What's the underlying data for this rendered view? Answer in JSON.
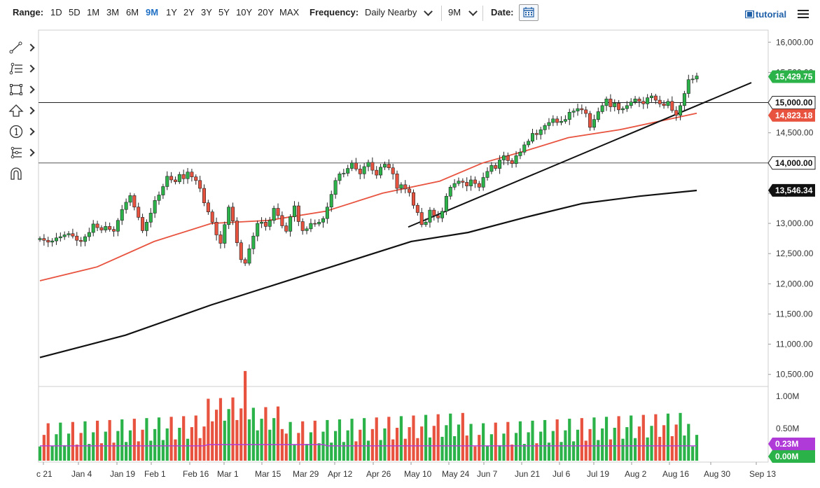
{
  "toolbar": {
    "range_label": "Range:",
    "ranges": [
      "1D",
      "5D",
      "1M",
      "3M",
      "6M",
      "9M",
      "1Y",
      "2Y",
      "3Y",
      "5Y",
      "10Y",
      "20Y",
      "MAX"
    ],
    "active_range": "9M",
    "frequency_label": "Frequency:",
    "frequency_value": "Daily Nearby",
    "period_value": "9M",
    "date_label": "Date:",
    "tutorial_label": "tutorial",
    "icons": [
      "calendar-icon",
      "film-icon",
      "hamburger-menu-icon"
    ]
  },
  "tools": [
    "line-draw-icon",
    "fib-levels-icon",
    "rectangle-icon",
    "arrow-up-icon",
    "annotation-number-icon",
    "pitchfork-icon",
    "magnet-icon"
  ],
  "chart_data": {
    "type": "candlestick",
    "x_labels": [
      "c 21",
      "Jan 4",
      "Jan 19",
      "Feb 1",
      "Feb 16",
      "Mar 1",
      "Mar 15",
      "Mar 29",
      "Apr 12",
      "Apr 26",
      "May 10",
      "May 24",
      "Jun 7",
      "Jun 21",
      "Jul 6",
      "Jul 19",
      "Aug 2",
      "Aug 16",
      "Aug 30",
      "Sep 13"
    ],
    "y_ticks": [
      "16,000.00",
      "15,500.00",
      "15,000.00",
      "14,500.00",
      "14,000.00",
      "13,500.00",
      "13,000.00",
      "12,500.00",
      "12,000.00",
      "11,500.00",
      "11,000.00",
      "10,500.00"
    ],
    "ylim": [
      10300,
      16200
    ],
    "horizontal_lines": [
      15000,
      14000
    ],
    "series_closes": [
      12750,
      12720,
      12690,
      12710,
      12760,
      12780,
      12810,
      12830,
      12790,
      12720,
      12700,
      12780,
      12850,
      12990,
      12930,
      12890,
      12950,
      12900,
      12870,
      13050,
      13230,
      13350,
      13460,
      13270,
      13100,
      12880,
      13020,
      13170,
      13380,
      13470,
      13610,
      13780,
      13720,
      13690,
      13810,
      13740,
      13850,
      13770,
      13710,
      13580,
      13340,
      13190,
      13020,
      12810,
      12670,
      12980,
      13270,
      13040,
      12680,
      12400,
      12340,
      12580,
      12790,
      13000,
      13020,
      12950,
      13050,
      13250,
      13130,
      12960,
      12870,
      13110,
      13290,
      13030,
      12880,
      12910,
      13000,
      12990,
      13020,
      13080,
      13270,
      13480,
      13710,
      13820,
      13830,
      13910,
      14000,
      13900,
      13820,
      13940,
      14010,
      13880,
      13800,
      13930,
      13980,
      13920,
      13820,
      13580,
      13640,
      13570,
      13510,
      13300,
      13180,
      12980,
      13020,
      13220,
      13130,
      13090,
      13200,
      13450,
      13600,
      13660,
      13700,
      13680,
      13620,
      13720,
      13660,
      13600,
      13760,
      13860,
      13960,
      13910,
      14050,
      14120,
      14040,
      13990,
      14120,
      14180,
      14300,
      14360,
      14490,
      14470,
      14550,
      14620,
      14670,
      14730,
      14670,
      14690,
      14720,
      14840,
      14860,
      14900,
      14880,
      14820,
      14590,
      14720,
      14850,
      14950,
      15060,
      14930,
      14990,
      14880,
      14900,
      14950,
      15010,
      15060,
      15020,
      14980,
      15080,
      15110,
      15040,
      14980,
      14950,
      15020,
      14870,
      14790,
      14950,
      15150,
      15380,
      15390,
      15440
    ],
    "ma50": [
      [
        0,
        12050
      ],
      [
        20,
        12280
      ],
      [
        40,
        12700
      ],
      [
        60,
        13000
      ],
      [
        80,
        13050
      ],
      [
        100,
        13200
      ],
      [
        120,
        13500
      ],
      [
        140,
        13700
      ],
      [
        155,
        14000
      ],
      [
        170,
        14200
      ],
      [
        185,
        14420
      ],
      [
        203,
        14550
      ],
      [
        230,
        14823
      ]
    ],
    "ma200": [
      [
        0,
        10780
      ],
      [
        30,
        11150
      ],
      [
        60,
        11650
      ],
      [
        90,
        12100
      ],
      [
        110,
        12400
      ],
      [
        130,
        12700
      ],
      [
        150,
        12850
      ],
      [
        170,
        13100
      ],
      [
        190,
        13330
      ],
      [
        210,
        13450
      ],
      [
        230,
        13546
      ]
    ],
    "trendline": [
      [
        12940,
        "May 10"
      ],
      [
        15330,
        "Sep"
      ]
    ],
    "last_price": "15,429.75",
    "level_15000": "15,000.00",
    "ma50_value": "14,823.18",
    "level_14000": "14,000.00",
    "ma200_value": "13,546.34",
    "volume": {
      "y_ticks": [
        "1.00M",
        "0.50M"
      ],
      "avg_label": "0.23M",
      "zero_label": "0.00M"
    },
    "colors": {
      "up": "#2bb34a",
      "down": "#e8533f",
      "ma50": "#e8533f",
      "ma200": "#111111",
      "badge_green": "#2bb34a",
      "badge_red": "#e8533f",
      "badge_black": "#111111",
      "badge_purple": "#b03ad8"
    }
  }
}
